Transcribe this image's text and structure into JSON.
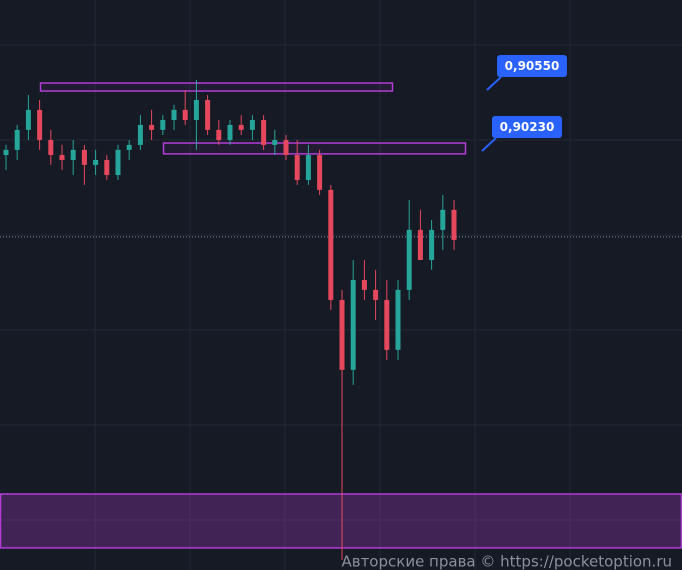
{
  "chart_data": {
    "type": "candlestick",
    "ylim": [
      0.88014,
      0.91007
    ],
    "colors": {
      "up": "#26a69a",
      "down": "#e5485c",
      "zone": "#b23dd6",
      "callout": "#2962ff"
    },
    "candles": [
      [
        0.90193,
        0.90246,
        0.90115,
        0.9022
      ],
      [
        0.9022,
        0.90351,
        0.90167,
        0.90325
      ],
      [
        0.90325,
        0.90508,
        0.90272,
        0.9043
      ],
      [
        0.9043,
        0.90482,
        0.9022,
        0.90272
      ],
      [
        0.90272,
        0.90325,
        0.90141,
        0.90193
      ],
      [
        0.90193,
        0.90246,
        0.90115,
        0.90167
      ],
      [
        0.90167,
        0.90272,
        0.90088,
        0.9022
      ],
      [
        0.9022,
        0.90246,
        0.90036,
        0.90141
      ],
      [
        0.90141,
        0.9022,
        0.90088,
        0.90167
      ],
      [
        0.90167,
        0.90193,
        0.90062,
        0.90088
      ],
      [
        0.90088,
        0.90246,
        0.90062,
        0.9022
      ],
      [
        0.9022,
        0.90272,
        0.90167,
        0.90246
      ],
      [
        0.90246,
        0.90403,
        0.9022,
        0.90351
      ],
      [
        0.90351,
        0.9043,
        0.90272,
        0.90325
      ],
      [
        0.90325,
        0.90403,
        0.90298,
        0.90377
      ],
      [
        0.90377,
        0.90456,
        0.90325,
        0.9043
      ],
      [
        0.9043,
        0.90534,
        0.90351,
        0.90377
      ],
      [
        0.90377,
        0.90587,
        0.9022,
        0.90482
      ],
      [
        0.90482,
        0.90508,
        0.90298,
        0.90325
      ],
      [
        0.90325,
        0.90377,
        0.90246,
        0.90272
      ],
      [
        0.90272,
        0.90377,
        0.90246,
        0.90351
      ],
      [
        0.90351,
        0.90403,
        0.90298,
        0.90325
      ],
      [
        0.90325,
        0.90403,
        0.90272,
        0.90377
      ],
      [
        0.90377,
        0.90403,
        0.9022,
        0.90246
      ],
      [
        0.90246,
        0.90325,
        0.90193,
        0.90272
      ],
      [
        0.90272,
        0.90298,
        0.90167,
        0.90193
      ],
      [
        0.90193,
        0.90272,
        0.90036,
        0.90062
      ],
      [
        0.90062,
        0.90246,
        0.90036,
        0.90193
      ],
      [
        0.90193,
        0.9022,
        0.89983,
        0.9001
      ],
      [
        0.9001,
        0.90036,
        0.8938,
        0.89432
      ],
      [
        0.89432,
        0.89485,
        0.88067,
        0.89065
      ],
      [
        0.89065,
        0.89642,
        0.88986,
        0.89537
      ],
      [
        0.89537,
        0.89642,
        0.89432,
        0.89485
      ],
      [
        0.89485,
        0.8959,
        0.89327,
        0.89432
      ],
      [
        0.89432,
        0.89537,
        0.89117,
        0.8917
      ],
      [
        0.8917,
        0.89537,
        0.89117,
        0.89485
      ],
      [
        0.89485,
        0.89957,
        0.89432,
        0.898
      ],
      [
        0.898,
        0.89905,
        0.89642,
        0.89642
      ],
      [
        0.89642,
        0.89852,
        0.8959,
        0.898
      ],
      [
        0.898,
        0.89983,
        0.89695,
        0.89905
      ],
      [
        0.89905,
        0.89957,
        0.89695,
        0.89747
      ]
    ],
    "last_price": 0.89763,
    "zones": [
      [
        0.90571,
        0.90529
      ],
      [
        0.90256,
        0.90199
      ],
      [
        0.88413,
        0.8813
      ]
    ],
    "annotations": [
      {
        "value": 0.9055,
        "label": "0,90550"
      },
      {
        "value": 0.9023,
        "label": "0,90230"
      }
    ],
    "watermark": "Авторские права © https://pocketoption.ru"
  }
}
